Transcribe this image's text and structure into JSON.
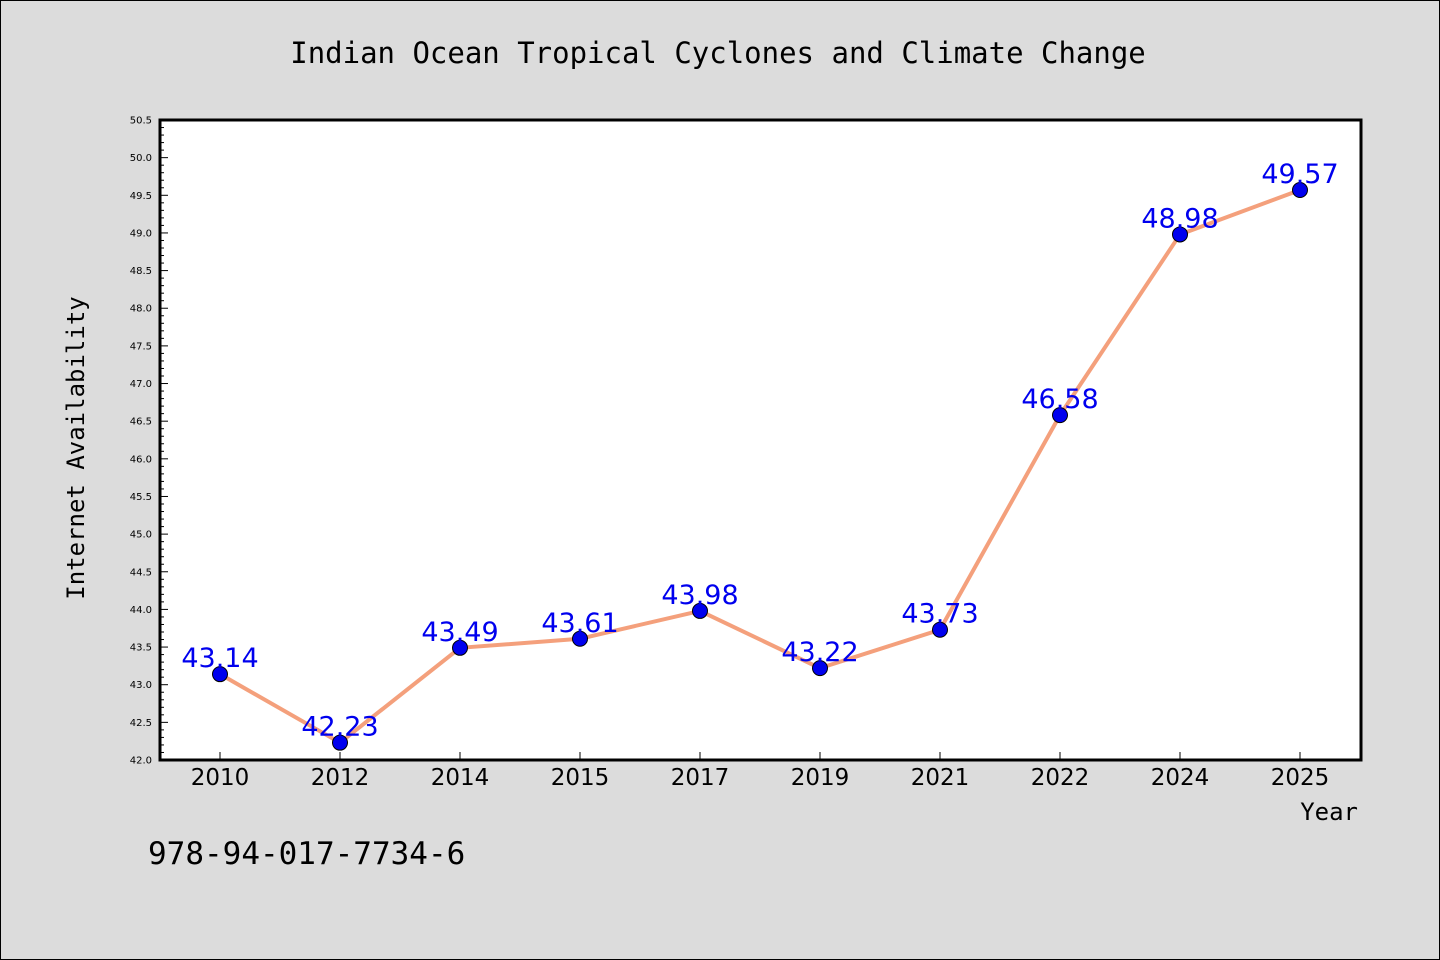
{
  "chart_data": {
    "type": "line",
    "title": "Indian Ocean Tropical Cyclones and Climate Change",
    "xlabel": "Year",
    "ylabel": "Internet Availability",
    "categories": [
      "2010",
      "2012",
      "2014",
      "2015",
      "2017",
      "2019",
      "2021",
      "2022",
      "2024",
      "2025"
    ],
    "values": [
      43.14,
      42.23,
      43.49,
      43.61,
      43.98,
      43.22,
      43.73,
      46.58,
      48.98,
      49.57
    ],
    "data_labels": [
      "43.14",
      "42.23",
      "43.49",
      "43.61",
      "43.98",
      "43.22",
      "43.73",
      "46.58",
      "48.98",
      "49.57"
    ],
    "ylim": [
      42.0,
      50.5
    ],
    "yticks": [
      "42.0",
      "42.5",
      "43.0",
      "43.5",
      "44.0",
      "44.5",
      "45.0",
      "45.5",
      "46.0",
      "46.5",
      "47.0",
      "47.5",
      "48.0",
      "48.5",
      "49.0",
      "49.5",
      "50.0",
      "50.5"
    ],
    "grid": false,
    "colors": {
      "line": "#f4a07c",
      "marker": "#0000ee",
      "data_label": "#0000ee",
      "background": "#dcdcdc",
      "plot_area": "#ffffff"
    }
  },
  "annotation": "978-94-017-7734-6"
}
